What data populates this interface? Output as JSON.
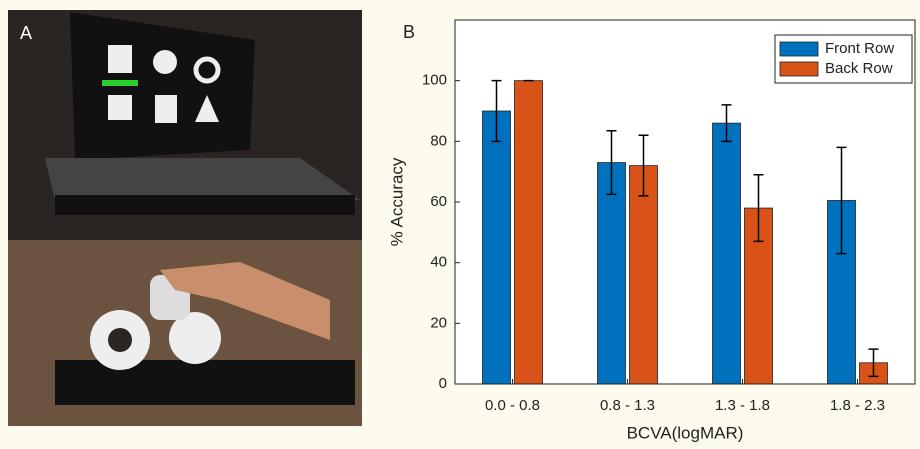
{
  "photo": {
    "label": "A"
  },
  "chart_data": {
    "type": "bar",
    "panel_label": "B",
    "x_label": "BCVA(logMAR)",
    "y_label": "% Accuracy",
    "categories": [
      "0.0 - 0.8",
      "0.8 - 1.3",
      "1.3 - 1.8",
      "1.8 - 2.3"
    ],
    "series": [
      {
        "name": "Front Row",
        "color": "#0072bd",
        "values": [
          90,
          73,
          86,
          60.5
        ],
        "errors": [
          10,
          10.5,
          6,
          17.5
        ]
      },
      {
        "name": "Back Row",
        "color": "#d95319",
        "values": [
          100,
          72,
          58,
          7
        ],
        "errors": [
          0,
          10,
          11,
          4.5
        ]
      }
    ],
    "ylim": [
      0,
      120
    ],
    "yticks": [
      0,
      20,
      40,
      60,
      80,
      100
    ],
    "legend": "top-right"
  }
}
